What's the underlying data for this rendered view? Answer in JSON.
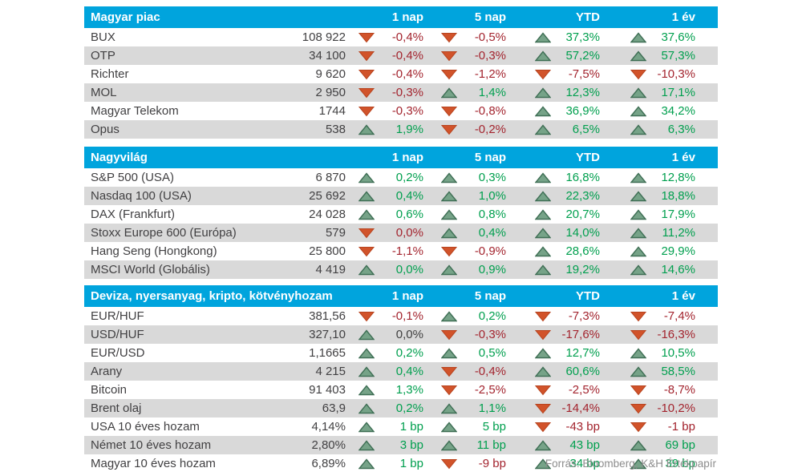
{
  "columns": [
    "1 nap",
    "5 nap",
    "YTD",
    "1 év"
  ],
  "colors": {
    "header_bg": "#00a4dd",
    "row_stripe": "#d9d9d9",
    "text_default": "#414042",
    "text_positive": "#009f4e",
    "text_negative": "#a3242e",
    "text_neutral": "#404040",
    "arrow_up_fill": "#76a388",
    "arrow_up_stroke": "#3f6f55",
    "arrow_down_fill": "#d1532a",
    "arrow_down_stroke": "#b8441f",
    "footer_text": "#8c8c8c"
  },
  "chart_data": [
    {
      "type": "table",
      "title": "Magyar piac",
      "columns": [
        "1 nap",
        "5 nap",
        "YTD",
        "1 év"
      ],
      "rows": [
        {
          "name": "BUX",
          "value": "108 922",
          "changes": [
            {
              "dir": "down",
              "text": "-0,4%",
              "tone": "neg"
            },
            {
              "dir": "down",
              "text": "-0,5%",
              "tone": "neg"
            },
            {
              "dir": "up",
              "text": "37,3%",
              "tone": "pos"
            },
            {
              "dir": "up",
              "text": "37,6%",
              "tone": "pos"
            }
          ]
        },
        {
          "name": "OTP",
          "value": "34 100",
          "changes": [
            {
              "dir": "down",
              "text": "-0,4%",
              "tone": "neg"
            },
            {
              "dir": "down",
              "text": "-0,3%",
              "tone": "neg"
            },
            {
              "dir": "up",
              "text": "57,2%",
              "tone": "pos"
            },
            {
              "dir": "up",
              "text": "57,3%",
              "tone": "pos"
            }
          ]
        },
        {
          "name": "Richter",
          "value": "9 620",
          "changes": [
            {
              "dir": "down",
              "text": "-0,4%",
              "tone": "neg"
            },
            {
              "dir": "down",
              "text": "-1,2%",
              "tone": "neg"
            },
            {
              "dir": "down",
              "text": "-7,5%",
              "tone": "neg"
            },
            {
              "dir": "down",
              "text": "-10,3%",
              "tone": "neg"
            }
          ]
        },
        {
          "name": "MOL",
          "value": "2 950",
          "changes": [
            {
              "dir": "down",
              "text": "-0,3%",
              "tone": "neg"
            },
            {
              "dir": "up",
              "text": "1,4%",
              "tone": "pos"
            },
            {
              "dir": "up",
              "text": "12,3%",
              "tone": "pos"
            },
            {
              "dir": "up",
              "text": "17,1%",
              "tone": "pos"
            }
          ]
        },
        {
          "name": "Magyar Telekom",
          "value": "1744",
          "changes": [
            {
              "dir": "down",
              "text": "-0,3%",
              "tone": "neg"
            },
            {
              "dir": "down",
              "text": "-0,8%",
              "tone": "neg"
            },
            {
              "dir": "up",
              "text": "36,9%",
              "tone": "pos"
            },
            {
              "dir": "up",
              "text": "34,2%",
              "tone": "pos"
            }
          ]
        },
        {
          "name": "Opus",
          "value": "538",
          "changes": [
            {
              "dir": "up",
              "text": "1,9%",
              "tone": "pos"
            },
            {
              "dir": "down",
              "text": "-0,2%",
              "tone": "neg"
            },
            {
              "dir": "up",
              "text": "6,5%",
              "tone": "pos"
            },
            {
              "dir": "up",
              "text": "6,3%",
              "tone": "pos"
            }
          ]
        }
      ]
    },
    {
      "type": "table",
      "title": "Nagyvilág",
      "columns": [
        "1 nap",
        "5 nap",
        "YTD",
        "1 év"
      ],
      "rows": [
        {
          "name": "S&P 500 (USA)",
          "value": "6 870",
          "changes": [
            {
              "dir": "up",
              "text": "0,2%",
              "tone": "pos"
            },
            {
              "dir": "up",
              "text": "0,3%",
              "tone": "pos"
            },
            {
              "dir": "up",
              "text": "16,8%",
              "tone": "pos"
            },
            {
              "dir": "up",
              "text": "12,8%",
              "tone": "pos"
            }
          ]
        },
        {
          "name": "Nasdaq 100 (USA)",
          "value": "25 692",
          "changes": [
            {
              "dir": "up",
              "text": "0,4%",
              "tone": "pos"
            },
            {
              "dir": "up",
              "text": "1,0%",
              "tone": "pos"
            },
            {
              "dir": "up",
              "text": "22,3%",
              "tone": "pos"
            },
            {
              "dir": "up",
              "text": "18,8%",
              "tone": "pos"
            }
          ]
        },
        {
          "name": "DAX (Frankfurt)",
          "value": "24 028",
          "changes": [
            {
              "dir": "up",
              "text": "0,6%",
              "tone": "pos"
            },
            {
              "dir": "up",
              "text": "0,8%",
              "tone": "pos"
            },
            {
              "dir": "up",
              "text": "20,7%",
              "tone": "pos"
            },
            {
              "dir": "up",
              "text": "17,9%",
              "tone": "pos"
            }
          ]
        },
        {
          "name": "Stoxx Europe 600 (Európa)",
          "value": "579",
          "changes": [
            {
              "dir": "down",
              "text": "0,0%",
              "tone": "neg"
            },
            {
              "dir": "up",
              "text": "0,4%",
              "tone": "pos"
            },
            {
              "dir": "up",
              "text": "14,0%",
              "tone": "pos"
            },
            {
              "dir": "up",
              "text": "11,2%",
              "tone": "pos"
            }
          ]
        },
        {
          "name": "Hang Seng (Hongkong)",
          "value": "25 800",
          "changes": [
            {
              "dir": "down",
              "text": "-1,1%",
              "tone": "neg"
            },
            {
              "dir": "down",
              "text": "-0,9%",
              "tone": "neg"
            },
            {
              "dir": "up",
              "text": "28,6%",
              "tone": "pos"
            },
            {
              "dir": "up",
              "text": "29,9%",
              "tone": "pos"
            }
          ]
        },
        {
          "name": "MSCI World (Globális)",
          "value": "4 419",
          "changes": [
            {
              "dir": "up",
              "text": "0,0%",
              "tone": "pos"
            },
            {
              "dir": "up",
              "text": "0,9%",
              "tone": "pos"
            },
            {
              "dir": "up",
              "text": "19,2%",
              "tone": "pos"
            },
            {
              "dir": "up",
              "text": "14,6%",
              "tone": "pos"
            }
          ]
        }
      ]
    },
    {
      "type": "table",
      "title": "Deviza, nyersanyag, kripto, kötvényhozam",
      "columns": [
        "1 nap",
        "5 nap",
        "YTD",
        "1 év"
      ],
      "rows": [
        {
          "name": "EUR/HUF",
          "value": "381,56",
          "changes": [
            {
              "dir": "down",
              "text": "-0,1%",
              "tone": "neg"
            },
            {
              "dir": "up",
              "text": "0,2%",
              "tone": "pos"
            },
            {
              "dir": "down",
              "text": "-7,3%",
              "tone": "neg"
            },
            {
              "dir": "down",
              "text": "-7,4%",
              "tone": "neg"
            }
          ]
        },
        {
          "name": "USD/HUF",
          "value": "327,10",
          "changes": [
            {
              "dir": "up",
              "text": "0,0%",
              "tone": "neu"
            },
            {
              "dir": "down",
              "text": "-0,3%",
              "tone": "neg"
            },
            {
              "dir": "down",
              "text": "-17,6%",
              "tone": "neg"
            },
            {
              "dir": "down",
              "text": "-16,3%",
              "tone": "neg"
            }
          ]
        },
        {
          "name": "EUR/USD",
          "value": "1,1665",
          "changes": [
            {
              "dir": "up",
              "text": "0,2%",
              "tone": "pos"
            },
            {
              "dir": "up",
              "text": "0,5%",
              "tone": "pos"
            },
            {
              "dir": "up",
              "text": "12,7%",
              "tone": "pos"
            },
            {
              "dir": "up",
              "text": "10,5%",
              "tone": "pos"
            }
          ]
        },
        {
          "name": "Arany",
          "value": "4 215",
          "changes": [
            {
              "dir": "up",
              "text": "0,4%",
              "tone": "pos"
            },
            {
              "dir": "down",
              "text": "-0,4%",
              "tone": "neg"
            },
            {
              "dir": "up",
              "text": "60,6%",
              "tone": "pos"
            },
            {
              "dir": "up",
              "text": "58,5%",
              "tone": "pos"
            }
          ]
        },
        {
          "name": "Bitcoin",
          "value": "91 403",
          "changes": [
            {
              "dir": "up",
              "text": "1,3%",
              "tone": "pos"
            },
            {
              "dir": "down",
              "text": "-2,5%",
              "tone": "neg"
            },
            {
              "dir": "down",
              "text": "-2,5%",
              "tone": "neg"
            },
            {
              "dir": "down",
              "text": "-8,7%",
              "tone": "neg"
            }
          ]
        },
        {
          "name": "Brent olaj",
          "value": "63,9",
          "changes": [
            {
              "dir": "up",
              "text": "0,2%",
              "tone": "pos"
            },
            {
              "dir": "up",
              "text": "1,1%",
              "tone": "pos"
            },
            {
              "dir": "down",
              "text": "-14,4%",
              "tone": "neg"
            },
            {
              "dir": "down",
              "text": "-10,2%",
              "tone": "neg"
            }
          ]
        },
        {
          "name": "USA 10 éves hozam",
          "value": "4,14%",
          "changes": [
            {
              "dir": "up",
              "text": "1 bp",
              "tone": "pos"
            },
            {
              "dir": "up",
              "text": "5 bp",
              "tone": "pos"
            },
            {
              "dir": "down",
              "text": "-43 bp",
              "tone": "neg"
            },
            {
              "dir": "down",
              "text": "-1 bp",
              "tone": "neg"
            }
          ]
        },
        {
          "name": "Német 10 éves hozam",
          "value": "2,80%",
          "changes": [
            {
              "dir": "up",
              "text": "3 bp",
              "tone": "pos"
            },
            {
              "dir": "up",
              "text": "11 bp",
              "tone": "pos"
            },
            {
              "dir": "up",
              "text": "43 bp",
              "tone": "pos"
            },
            {
              "dir": "up",
              "text": "69 bp",
              "tone": "pos"
            }
          ]
        },
        {
          "name": "Magyar 10 éves hozam",
          "value": "6,89%",
          "changes": [
            {
              "dir": "up",
              "text": "1 bp",
              "tone": "pos"
            },
            {
              "dir": "down",
              "text": "-9 bp",
              "tone": "neg"
            },
            {
              "dir": "up",
              "text": "34 bp",
              "tone": "pos"
            },
            {
              "dir": "up",
              "text": "39 bp",
              "tone": "pos"
            }
          ]
        }
      ]
    }
  ],
  "footer": "Forrás: Bloomberg, K&H Értékpapír"
}
